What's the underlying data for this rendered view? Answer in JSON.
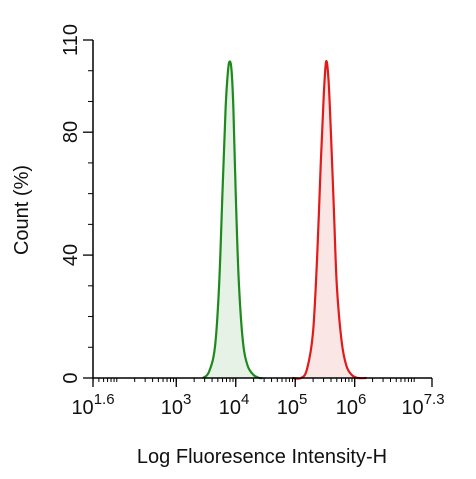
{
  "chart_data": {
    "type": "area",
    "title": "",
    "xlabel": "Log Fluoresence Intensity-H",
    "ylabel": "Count  (%)",
    "x_scale": "log10",
    "xlim_log10": [
      1.6,
      7.3
    ],
    "ylim": [
      0,
      110
    ],
    "grid": false,
    "legend": "none",
    "x_ticks": [
      {
        "base": "10",
        "exp": "1.6",
        "value": 1.6
      },
      {
        "base": "10",
        "exp": "3",
        "value": 3
      },
      {
        "base": "10",
        "exp": "4",
        "value": 4
      },
      {
        "base": "10",
        "exp": "5",
        "value": 5
      },
      {
        "base": "10",
        "exp": "6",
        "value": 6
      },
      {
        "base": "10",
        "exp": "7.3",
        "value": 7.3
      }
    ],
    "y_ticks": [
      {
        "label": "0",
        "value": 0
      },
      {
        "label": "40",
        "value": 40
      },
      {
        "label": "80",
        "value": 80
      },
      {
        "label": "110",
        "value": 110
      }
    ],
    "series": [
      {
        "color": "#1e8a1e",
        "fill": "#e6f2e6",
        "x_log10": [
          3.45,
          3.55,
          3.65,
          3.72,
          3.78,
          3.83,
          3.87,
          3.9,
          3.93,
          3.96,
          4.0,
          4.05,
          4.12,
          4.2,
          4.3,
          4.4,
          4.45
        ],
        "y": [
          0,
          2,
          10,
          30,
          62,
          88,
          100,
          103,
          100,
          88,
          60,
          32,
          12,
          4,
          1,
          0,
          0
        ]
      },
      {
        "color": "#e11a1a",
        "fill": "#fbe6e6",
        "x_log10": [
          4.95,
          5.1,
          5.2,
          5.3,
          5.37,
          5.43,
          5.48,
          5.52,
          5.56,
          5.6,
          5.65,
          5.7,
          5.78,
          5.86,
          5.95,
          6.05,
          6.2
        ],
        "y": [
          0,
          0,
          3,
          15,
          40,
          70,
          92,
          103,
          97,
          80,
          55,
          30,
          12,
          4,
          1,
          0,
          0
        ]
      }
    ]
  }
}
